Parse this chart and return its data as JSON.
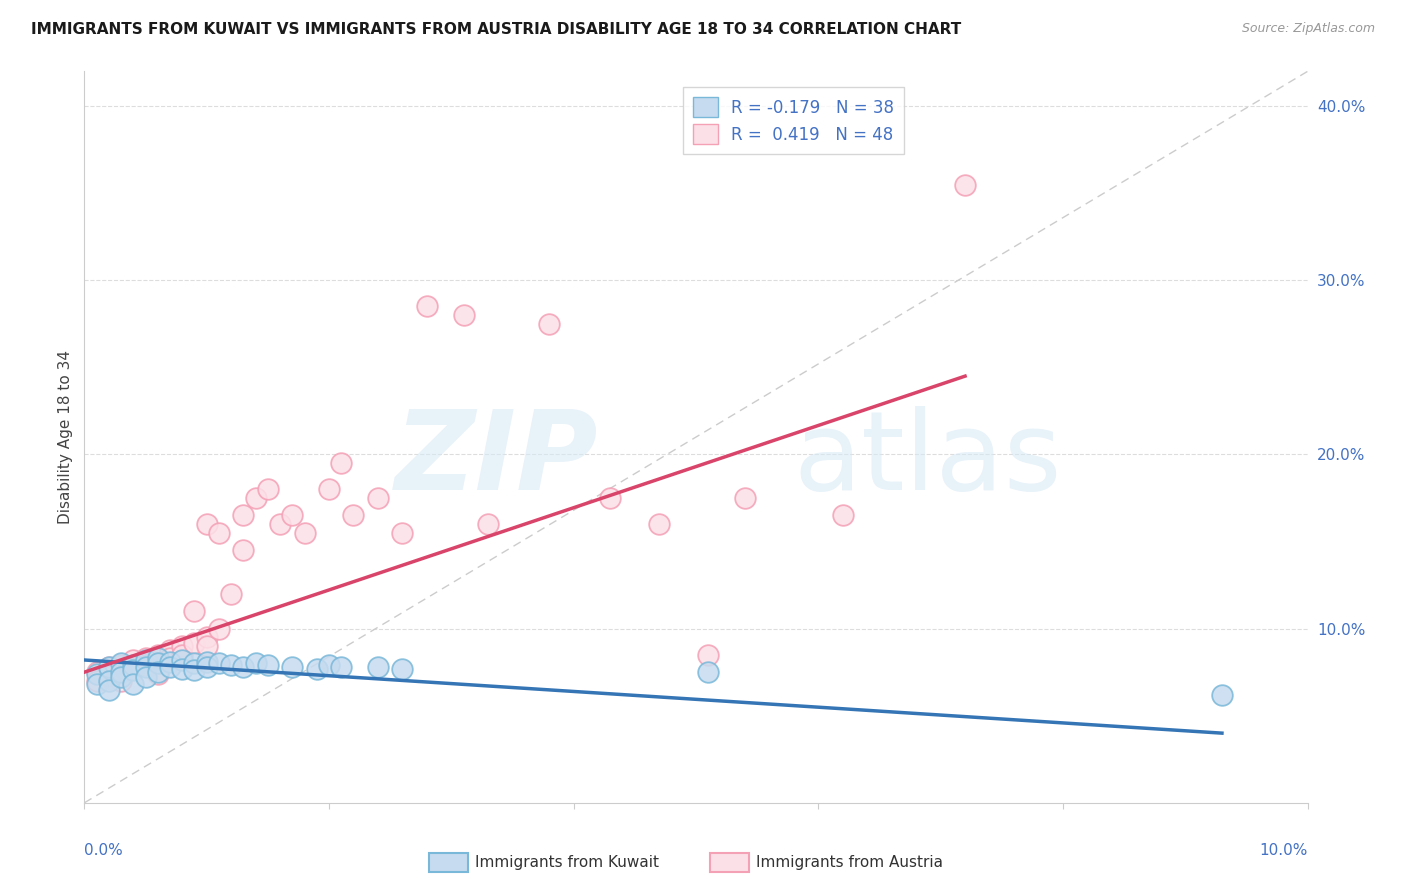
{
  "title": "IMMIGRANTS FROM KUWAIT VS IMMIGRANTS FROM AUSTRIA DISABILITY AGE 18 TO 34 CORRELATION CHART",
  "source_text": "Source: ZipAtlas.com",
  "ylabel": "Disability Age 18 to 34",
  "xlim": [
    0,
    0.1
  ],
  "ylim": [
    0,
    0.42
  ],
  "y_ticks": [
    0.0,
    0.1,
    0.2,
    0.3,
    0.4
  ],
  "y_tick_labels": [
    "",
    "10.0%",
    "20.0%",
    "30.0%",
    "40.0%"
  ],
  "kuwait_R": -0.179,
  "kuwait_N": 38,
  "austria_R": 0.419,
  "austria_N": 48,
  "kuwait_color": "#7ab8d9",
  "kuwait_fill": "#c6dbef",
  "austria_color": "#f4a0b5",
  "austria_fill": "#fce0e8",
  "kuwait_line_color": "#3575b5",
  "austria_line_color": "#d9446a",
  "ref_line_color": "#cccccc",
  "background_color": "#ffffff",
  "label_color": "#4472c4",
  "kuwait_x": [
    0.001,
    0.001,
    0.002,
    0.002,
    0.002,
    0.003,
    0.003,
    0.003,
    0.004,
    0.004,
    0.004,
    0.005,
    0.005,
    0.005,
    0.006,
    0.006,
    0.006,
    0.007,
    0.007,
    0.008,
    0.008,
    0.009,
    0.009,
    0.01,
    0.01,
    0.011,
    0.012,
    0.013,
    0.014,
    0.015,
    0.017,
    0.019,
    0.02,
    0.021,
    0.024,
    0.026,
    0.051,
    0.093
  ],
  "kuwait_y": [
    0.074,
    0.068,
    0.078,
    0.07,
    0.065,
    0.08,
    0.075,
    0.072,
    0.079,
    0.076,
    0.068,
    0.082,
    0.078,
    0.072,
    0.083,
    0.08,
    0.075,
    0.081,
    0.078,
    0.082,
    0.077,
    0.08,
    0.076,
    0.081,
    0.078,
    0.08,
    0.079,
    0.078,
    0.08,
    0.079,
    0.078,
    0.077,
    0.079,
    0.078,
    0.078,
    0.077,
    0.075,
    0.062
  ],
  "austria_x": [
    0.001,
    0.001,
    0.002,
    0.002,
    0.003,
    0.003,
    0.003,
    0.004,
    0.004,
    0.005,
    0.005,
    0.006,
    0.006,
    0.006,
    0.007,
    0.007,
    0.008,
    0.008,
    0.009,
    0.009,
    0.01,
    0.01,
    0.01,
    0.011,
    0.011,
    0.012,
    0.013,
    0.013,
    0.014,
    0.015,
    0.016,
    0.017,
    0.018,
    0.02,
    0.021,
    0.022,
    0.024,
    0.026,
    0.028,
    0.031,
    0.033,
    0.038,
    0.043,
    0.047,
    0.051,
    0.054,
    0.062,
    0.072
  ],
  "austria_y": [
    0.075,
    0.07,
    0.078,
    0.073,
    0.079,
    0.076,
    0.07,
    0.082,
    0.077,
    0.083,
    0.079,
    0.085,
    0.08,
    0.074,
    0.088,
    0.083,
    0.09,
    0.085,
    0.092,
    0.11,
    0.095,
    0.09,
    0.16,
    0.1,
    0.155,
    0.12,
    0.145,
    0.165,
    0.175,
    0.18,
    0.16,
    0.165,
    0.155,
    0.18,
    0.195,
    0.165,
    0.175,
    0.155,
    0.285,
    0.28,
    0.16,
    0.275,
    0.175,
    0.16,
    0.085,
    0.175,
    0.165,
    0.355
  ],
  "austria_line_x0": 0.0,
  "austria_line_y0": 0.075,
  "austria_line_x1": 0.072,
  "austria_line_y1": 0.245,
  "kuwait_line_x0": 0.0,
  "kuwait_line_y0": 0.082,
  "kuwait_line_x1": 0.093,
  "kuwait_line_y1": 0.04
}
